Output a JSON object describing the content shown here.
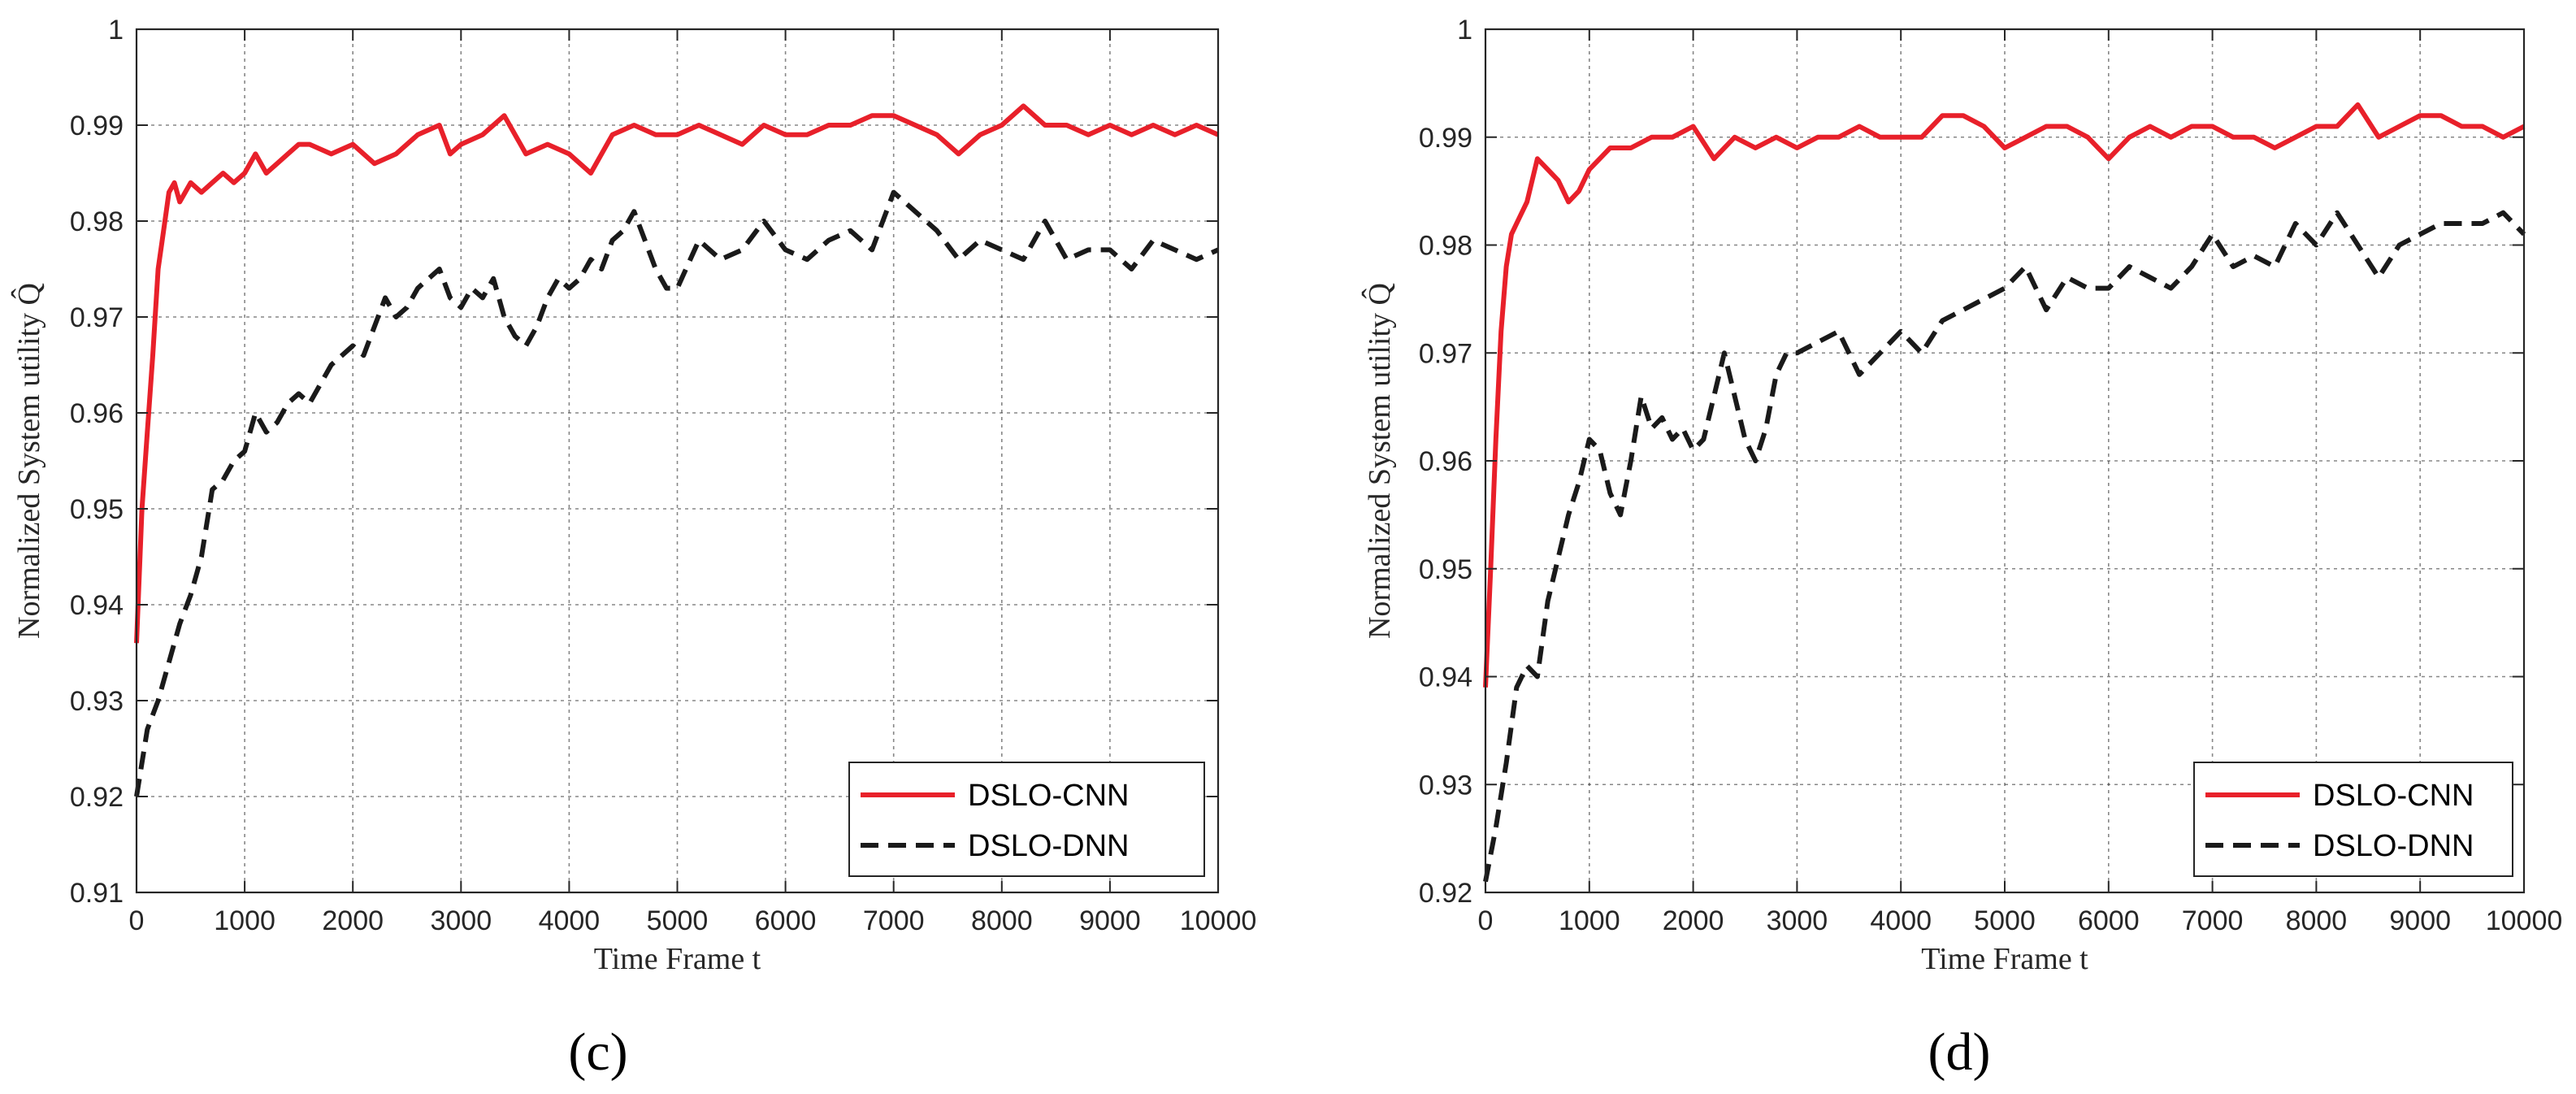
{
  "chart_data": [
    {
      "type": "line",
      "panel_label": "(c)",
      "xlabel": "Time Frame t",
      "ylabel": "Normalized System utility Q̂",
      "xlim": [
        0,
        10000
      ],
      "ylim": [
        0.91,
        1.0
      ],
      "xticks": [
        0,
        1000,
        2000,
        3000,
        4000,
        5000,
        6000,
        7000,
        8000,
        9000,
        10000
      ],
      "yticks": [
        0.91,
        0.92,
        0.93,
        0.94,
        0.95,
        0.96,
        0.97,
        0.98,
        0.99,
        1
      ],
      "grid": true,
      "legend_position": "bottom-right",
      "series": [
        {
          "name": "DSLO-CNN",
          "color": "#e8202a",
          "style": "solid",
          "x": [
            0,
            50,
            100,
            150,
            200,
            250,
            300,
            350,
            400,
            450,
            500,
            600,
            700,
            800,
            900,
            1000,
            1100,
            1200,
            1300,
            1400,
            1500,
            1600,
            1800,
            2000,
            2200,
            2400,
            2600,
            2800,
            2900,
            3000,
            3200,
            3400,
            3600,
            3800,
            4000,
            4200,
            4400,
            4600,
            4800,
            5000,
            5200,
            5400,
            5600,
            5800,
            6000,
            6200,
            6400,
            6600,
            6800,
            7000,
            7200,
            7400,
            7600,
            7800,
            8000,
            8200,
            8400,
            8600,
            8800,
            9000,
            9200,
            9400,
            9600,
            9800,
            10000
          ],
          "y": [
            0.936,
            0.95,
            0.958,
            0.966,
            0.975,
            0.979,
            0.983,
            0.984,
            0.982,
            0.983,
            0.984,
            0.983,
            0.984,
            0.985,
            0.984,
            0.985,
            0.987,
            0.985,
            0.986,
            0.987,
            0.988,
            0.988,
            0.987,
            0.988,
            0.986,
            0.987,
            0.989,
            0.99,
            0.987,
            0.988,
            0.989,
            0.991,
            0.987,
            0.988,
            0.987,
            0.985,
            0.989,
            0.99,
            0.989,
            0.989,
            0.99,
            0.989,
            0.988,
            0.99,
            0.989,
            0.989,
            0.99,
            0.99,
            0.991,
            0.991,
            0.99,
            0.989,
            0.987,
            0.989,
            0.99,
            0.992,
            0.99,
            0.99,
            0.989,
            0.99,
            0.989,
            0.99,
            0.989,
            0.99,
            0.989
          ]
        },
        {
          "name": "DSLO-DNN",
          "color": "#1a1a1a",
          "style": "dashed",
          "x": [
            0,
            100,
            200,
            300,
            400,
            500,
            600,
            700,
            800,
            900,
            1000,
            1100,
            1200,
            1300,
            1400,
            1500,
            1600,
            1700,
            1800,
            1900,
            2000,
            2100,
            2200,
            2300,
            2400,
            2500,
            2600,
            2700,
            2800,
            2900,
            3000,
            3100,
            3200,
            3300,
            3400,
            3500,
            3600,
            3700,
            3800,
            3900,
            4000,
            4100,
            4200,
            4300,
            4400,
            4500,
            4600,
            4700,
            4800,
            4900,
            5000,
            5200,
            5400,
            5600,
            5800,
            6000,
            6200,
            6400,
            6600,
            6800,
            6900,
            7000,
            7200,
            7400,
            7600,
            7800,
            8000,
            8200,
            8400,
            8600,
            8800,
            9000,
            9200,
            9400,
            9600,
            9800,
            10000
          ],
          "y": [
            0.92,
            0.927,
            0.93,
            0.934,
            0.938,
            0.941,
            0.945,
            0.952,
            0.953,
            0.955,
            0.956,
            0.96,
            0.958,
            0.959,
            0.961,
            0.962,
            0.961,
            0.963,
            0.965,
            0.966,
            0.967,
            0.966,
            0.969,
            0.972,
            0.97,
            0.971,
            0.973,
            0.974,
            0.975,
            0.972,
            0.971,
            0.973,
            0.972,
            0.974,
            0.97,
            0.968,
            0.967,
            0.969,
            0.972,
            0.974,
            0.973,
            0.974,
            0.976,
            0.975,
            0.978,
            0.979,
            0.981,
            0.978,
            0.975,
            0.973,
            0.973,
            0.978,
            0.976,
            0.977,
            0.98,
            0.977,
            0.976,
            0.978,
            0.979,
            0.977,
            0.98,
            0.983,
            0.981,
            0.979,
            0.976,
            0.978,
            0.977,
            0.976,
            0.98,
            0.976,
            0.977,
            0.977,
            0.975,
            0.978,
            0.977,
            0.976,
            0.977
          ]
        }
      ]
    },
    {
      "type": "line",
      "panel_label": "(d)",
      "xlabel": "Time Frame t",
      "ylabel": "Normalized System utility Q̂",
      "xlim": [
        0,
        10000
      ],
      "ylim": [
        0.92,
        1.0
      ],
      "xticks": [
        0,
        1000,
        2000,
        3000,
        4000,
        5000,
        6000,
        7000,
        8000,
        9000,
        10000
      ],
      "yticks": [
        0.92,
        0.93,
        0.94,
        0.95,
        0.96,
        0.97,
        0.98,
        0.99,
        1
      ],
      "grid": true,
      "legend_position": "bottom-right",
      "series": [
        {
          "name": "DSLO-CNN",
          "color": "#e8202a",
          "style": "solid",
          "x": [
            0,
            50,
            100,
            150,
            200,
            250,
            300,
            400,
            500,
            600,
            700,
            800,
            900,
            1000,
            1100,
            1200,
            1400,
            1600,
            1800,
            2000,
            2200,
            2400,
            2600,
            2800,
            3000,
            3200,
            3400,
            3600,
            3800,
            4000,
            4200,
            4400,
            4600,
            4800,
            5000,
            5200,
            5400,
            5600,
            5800,
            6000,
            6200,
            6400,
            6600,
            6800,
            7000,
            7200,
            7400,
            7600,
            7800,
            8000,
            8200,
            8400,
            8600,
            8800,
            9000,
            9200,
            9400,
            9600,
            9800,
            10000
          ],
          "y": [
            0.939,
            0.95,
            0.962,
            0.972,
            0.978,
            0.981,
            0.982,
            0.984,
            0.988,
            0.987,
            0.986,
            0.984,
            0.985,
            0.987,
            0.988,
            0.989,
            0.989,
            0.99,
            0.99,
            0.991,
            0.988,
            0.99,
            0.989,
            0.99,
            0.989,
            0.99,
            0.99,
            0.991,
            0.99,
            0.99,
            0.99,
            0.992,
            0.992,
            0.991,
            0.989,
            0.99,
            0.991,
            0.991,
            0.99,
            0.988,
            0.99,
            0.991,
            0.99,
            0.991,
            0.991,
            0.99,
            0.99,
            0.989,
            0.99,
            0.991,
            0.991,
            0.993,
            0.99,
            0.991,
            0.992,
            0.992,
            0.991,
            0.991,
            0.99,
            0.991
          ]
        },
        {
          "name": "DSLO-DNN",
          "color": "#1a1a1a",
          "style": "dashed",
          "x": [
            0,
            100,
            200,
            300,
            400,
            500,
            600,
            700,
            800,
            900,
            1000,
            1100,
            1200,
            1300,
            1400,
            1500,
            1600,
            1700,
            1800,
            1900,
            2000,
            2100,
            2200,
            2300,
            2400,
            2500,
            2600,
            2700,
            2800,
            2900,
            3000,
            3200,
            3400,
            3600,
            3800,
            4000,
            4200,
            4400,
            4600,
            4800,
            5000,
            5200,
            5400,
            5600,
            5800,
            6000,
            6200,
            6400,
            6600,
            6800,
            7000,
            7200,
            7400,
            7600,
            7800,
            8000,
            8200,
            8400,
            8600,
            8800,
            9000,
            9200,
            9400,
            9600,
            9800,
            10000
          ],
          "y": [
            0.921,
            0.926,
            0.932,
            0.939,
            0.941,
            0.94,
            0.947,
            0.951,
            0.955,
            0.958,
            0.962,
            0.961,
            0.957,
            0.955,
            0.96,
            0.966,
            0.963,
            0.964,
            0.962,
            0.963,
            0.961,
            0.962,
            0.966,
            0.97,
            0.966,
            0.962,
            0.96,
            0.963,
            0.968,
            0.97,
            0.97,
            0.971,
            0.972,
            0.968,
            0.97,
            0.972,
            0.97,
            0.973,
            0.974,
            0.975,
            0.976,
            0.978,
            0.974,
            0.977,
            0.976,
            0.976,
            0.978,
            0.977,
            0.976,
            0.978,
            0.981,
            0.978,
            0.979,
            0.978,
            0.982,
            0.98,
            0.983,
            0.98,
            0.977,
            0.98,
            0.981,
            0.982,
            0.982,
            0.982,
            0.983,
            0.981
          ]
        }
      ]
    }
  ]
}
